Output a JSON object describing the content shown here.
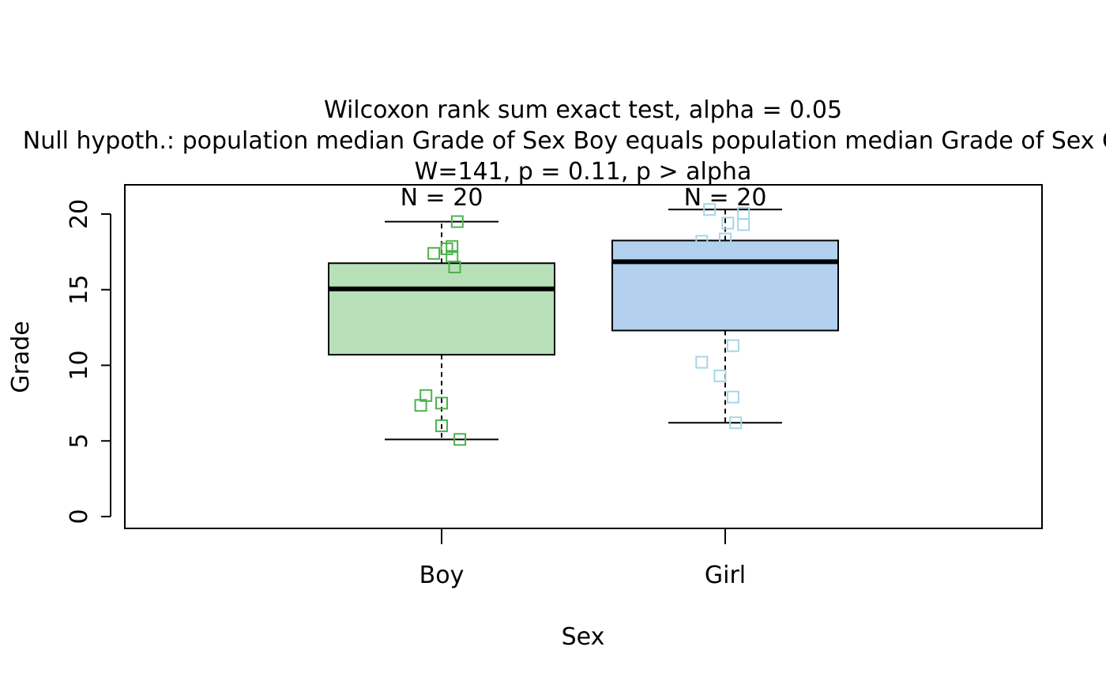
{
  "chart_data": {
    "type": "box",
    "title_lines": [
      "Wilcoxon rank sum exact test, alpha = 0.05",
      "Null hypoth.: population median Grade of Sex Boy equals population median Grade of Sex Girl",
      "W=141, p = 0.11, p > alpha"
    ],
    "xlabel": "Sex",
    "ylabel": "Grade",
    "ylim": [
      -0.8,
      22
    ],
    "y_ticks": [
      "0",
      "5",
      "10",
      "15",
      "20"
    ],
    "categories": [
      "Boy",
      "Girl"
    ],
    "n_labels": [
      "N = 20",
      "N = 20"
    ],
    "boxes": [
      {
        "name": "Boy",
        "fill": "#b8e0b8",
        "point_color": "#4db24d",
        "whisker_low": 5.1,
        "q1": 10.7,
        "median": 15.05,
        "q3": 16.75,
        "whisker_high": 19.5,
        "points": [
          [
            0.06,
            19.5
          ],
          [
            0.04,
            17.85
          ],
          [
            0.02,
            17.7
          ],
          [
            0.04,
            17.2
          ],
          [
            -0.03,
            17.4
          ],
          [
            0.05,
            16.5
          ],
          [
            -0.06,
            8.0
          ],
          [
            -0.08,
            7.35
          ],
          [
            0.0,
            7.5
          ],
          [
            0.0,
            6.0
          ],
          [
            0.07,
            5.1
          ]
        ]
      },
      {
        "name": "Girl",
        "fill": "#b3d1ee",
        "point_color": "#a6d6e8",
        "whisker_low": 6.2,
        "q1": 12.3,
        "median": 16.85,
        "q3": 18.25,
        "whisker_high": 20.3,
        "points": [
          [
            -0.06,
            20.3
          ],
          [
            0.07,
            20.05
          ],
          [
            0.01,
            19.4
          ],
          [
            0.07,
            19.3
          ],
          [
            -0.09,
            18.2
          ],
          [
            0.0,
            18.35
          ],
          [
            0.03,
            11.3
          ],
          [
            -0.09,
            10.2
          ],
          [
            -0.02,
            9.3
          ],
          [
            0.03,
            7.9
          ],
          [
            0.04,
            6.2
          ]
        ]
      }
    ],
    "legend": "none",
    "grid": false
  }
}
